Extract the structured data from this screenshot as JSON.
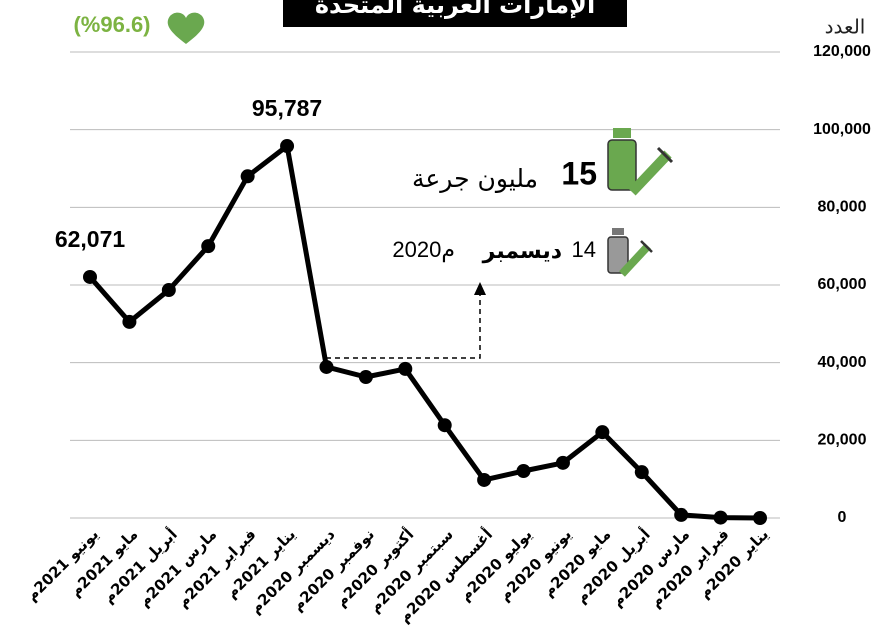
{
  "chart_data": {
    "type": "line",
    "title": "الإمارات العربية المتحدة",
    "badge": "(%96.6)",
    "y_label": "العدد",
    "dose_count": "15",
    "dose_unit": "مليون جرعة",
    "start_day": "14",
    "start_month": "ديسمبر",
    "start_year": "2020م",
    "x_reversed": true,
    "categories": [
      "يناير 2020م",
      "فبراير 2020م",
      "مارس 2020م",
      "أبريل 2020م",
      "مايو 2020م",
      "يونيو 2020م",
      "يوليو 2020م",
      "أغسطس 2020م",
      "سبتمبر 2020م",
      "أكتوبر 2020م",
      "نوفمبر 2020م",
      "ديسمبر 2020م",
      "يناير 2021م",
      "فبراير 2021م",
      "مارس 2021م",
      "أبريل 2021م",
      "مايو 2021م",
      "يونيو 2021م"
    ],
    "values": [
      0,
      100,
      800,
      11800,
      22100,
      14200,
      12100,
      9800,
      23900,
      38400,
      36300,
      38900,
      95787,
      88000,
      70000,
      58700,
      50500,
      62071
    ],
    "value_labels": [
      null,
      null,
      null,
      null,
      null,
      null,
      null,
      null,
      null,
      null,
      null,
      null,
      "95,787",
      null,
      null,
      null,
      null,
      "62,071"
    ],
    "color": "#000000",
    "ylim": [
      0,
      120000
    ],
    "yticks": [
      0,
      {
        "value": 20000,
        "label": "20,000"
      },
      {
        "value": 40000,
        "label": "40,000"
      },
      {
        "value": 60000,
        "label": "60,000"
      },
      {
        "value": 80000,
        "label": "80,000"
      },
      {
        "value": 100000,
        "label": "100,000"
      },
      {
        "value": 120000,
        "label": "120,000"
      }
    ],
    "grid": true
  }
}
